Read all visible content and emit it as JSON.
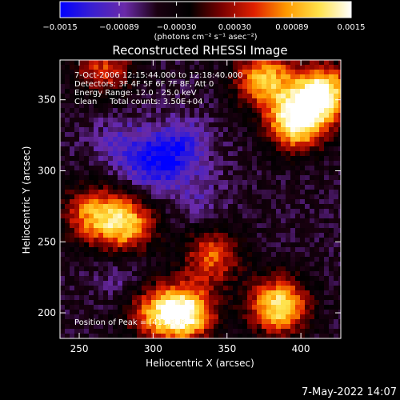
{
  "chart_data": {
    "type": "heatmap",
    "title": "Reconstructed RHESSI Image",
    "xlabel": "Heliocentric X (arcsec)",
    "ylabel": "Heliocentric Y (arcsec)",
    "xlim": [
      237,
      427
    ],
    "ylim": [
      182,
      378
    ],
    "x_ticks": [
      250,
      300,
      350,
      400
    ],
    "y_ticks": [
      200,
      250,
      300,
      350
    ],
    "colorbar": {
      "range": [
        -0.0015,
        0.0015
      ],
      "ticks": [
        -0.0015,
        -0.00089,
        -0.0003,
        0.0003,
        0.00089,
        0.0015
      ],
      "tick_labels": [
        "−0.0015",
        "−0.00089",
        "−0.00030",
        "0.00030",
        "0.00089",
        "0.0015"
      ],
      "units_label": "(photons cm⁻² s⁻¹ asec⁻²)",
      "colors": [
        "#0000ff",
        "#3a1fd0",
        "#6a2aa8",
        "#1a0010",
        "#000000",
        "#7a0000",
        "#e02000",
        "#ff9a00",
        "#ffe24a",
        "#ffffff"
      ]
    },
    "annotations": [
      "7-Oct-2006 12:15:44.000 to 12:18:40.000",
      "Detectors: 3F 4F 5F 6F 7F 8F, Att 0",
      "Energy Range: 12.0 - 25.0 keV",
      "Clean     Total counts: 3.50E+04"
    ],
    "peak_label": "Position of Peak = [411,318]",
    "hot_regions": [
      {
        "x": 397,
        "y": 335,
        "value": 0.0015
      },
      {
        "x": 415,
        "y": 355,
        "value": 0.0014
      },
      {
        "x": 322,
        "y": 200,
        "value": 0.0014
      },
      {
        "x": 385,
        "y": 205,
        "value": 0.0013
      },
      {
        "x": 282,
        "y": 262,
        "value": 0.001
      },
      {
        "x": 375,
        "y": 365,
        "value": 0.001
      },
      {
        "x": 258,
        "y": 270,
        "value": 0.0007
      },
      {
        "x": 340,
        "y": 240,
        "value": 0.0006
      },
      {
        "x": 300,
        "y": 200,
        "value": 0.0006
      },
      {
        "x": 266,
        "y": 372,
        "value": 0.0005
      }
    ],
    "cold_regions": [
      {
        "x": 300,
        "y": 305,
        "value": -0.0013
      },
      {
        "x": 320,
        "y": 318,
        "value": -0.0011
      },
      {
        "x": 275,
        "y": 320,
        "value": -0.0009
      },
      {
        "x": 330,
        "y": 280,
        "value": -0.0008
      },
      {
        "x": 280,
        "y": 225,
        "value": -0.0008
      }
    ]
  },
  "timestamp": "7-May-2022 14:07"
}
